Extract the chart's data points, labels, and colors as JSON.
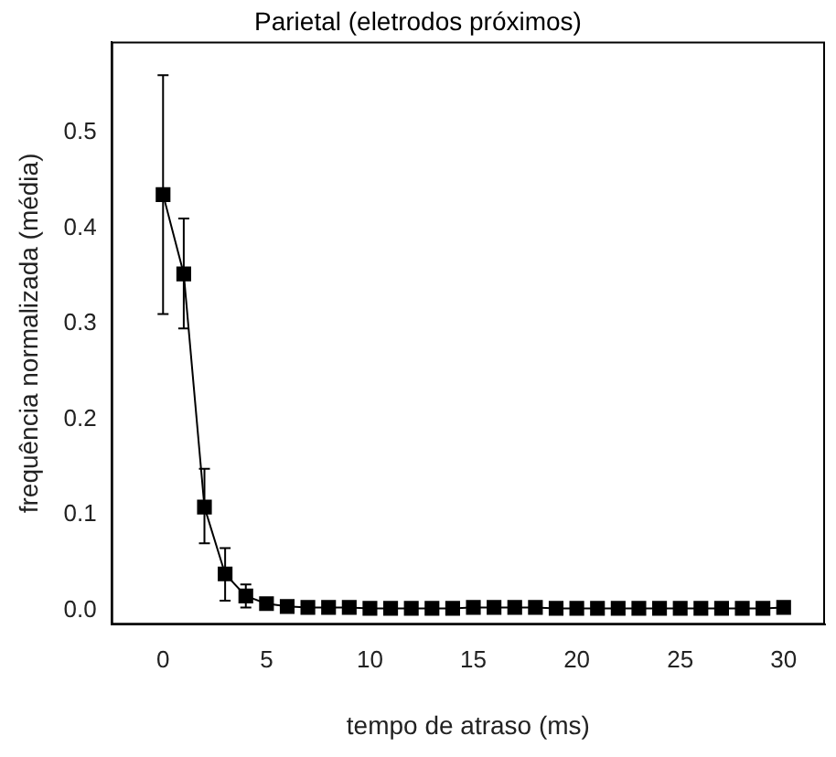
{
  "chart_data": {
    "type": "line",
    "title": "Parietal (eletrodos próximos)",
    "xlabel": "tempo de atraso (ms)",
    "ylabel": "frequência normalizada (média)",
    "x": [
      0,
      1,
      2,
      3,
      4,
      5,
      6,
      7,
      8,
      9,
      10,
      11,
      12,
      13,
      14,
      15,
      16,
      17,
      18,
      19,
      20,
      21,
      22,
      23,
      24,
      25,
      26,
      27,
      28,
      29,
      30
    ],
    "series": [
      {
        "color": "#000000",
        "values": [
          0.435,
          0.352,
          0.108,
          0.038,
          0.015,
          0.007,
          0.004,
          0.003,
          0.003,
          0.003,
          0.002,
          0.002,
          0.002,
          0.002,
          0.002,
          0.003,
          0.003,
          0.003,
          0.003,
          0.002,
          0.002,
          0.002,
          0.002,
          0.002,
          0.002,
          0.002,
          0.002,
          0.002,
          0.002,
          0.002,
          0.003
        ],
        "errors": [
          [
            0.31,
            0.56
          ],
          [
            0.295,
            0.41
          ],
          [
            0.07,
            0.148
          ],
          [
            0.01,
            0.065
          ],
          [
            0.003,
            0.027
          ],
          null,
          null,
          null,
          null,
          null,
          null,
          null,
          null,
          null,
          null,
          null,
          null,
          null,
          null,
          null,
          null,
          null,
          null,
          null,
          null,
          null,
          null,
          null,
          null,
          null,
          null
        ]
      }
    ],
    "xlim": [
      -2.5,
      32
    ],
    "xticks": [
      0,
      5,
      10,
      15,
      20,
      25,
      30
    ],
    "ylim": [
      -0.015,
      0.595
    ],
    "yticks": [
      {
        "value": 0,
        "label": "0.0"
      },
      0.1,
      0.2,
      0.3,
      0.4,
      0.5
    ],
    "grid": false,
    "legend": false,
    "marker": "square",
    "line_style": "solid"
  }
}
